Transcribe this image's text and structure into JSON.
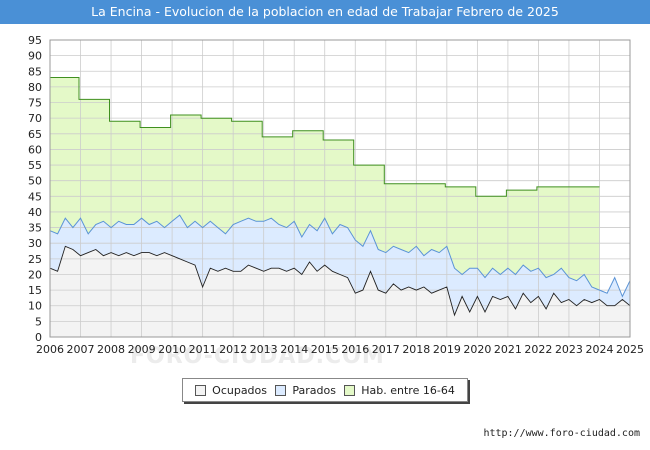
{
  "header": {
    "title": "La Encina - Evolucion de la poblacion en edad de Trabajar Febrero de 2025"
  },
  "watermark": "FORO-CIUDAD.COM",
  "source_text": "http://www.foro-ciudad.com",
  "colors": {
    "title_bg": "#4a90d6",
    "hab_fill": "#e4f9c8",
    "hab_line": "#3f8f1f",
    "par_fill": "#dcebff",
    "par_line": "#5a93d6",
    "ocu_fill": "#f3f3f3",
    "ocu_line": "#222222",
    "grid": "#cccccc"
  },
  "legend": [
    {
      "label": "Ocupados",
      "color": "#f3f3f3"
    },
    {
      "label": "Parados",
      "color": "#dcebff"
    },
    {
      "label": "Hab. entre 16-64",
      "color": "#e4f9c8"
    }
  ],
  "chart_data": {
    "type": "area",
    "title": "La Encina - Evolucion de la poblacion en edad de Trabajar Febrero de 2025",
    "xlabel": "",
    "ylabel": "",
    "xlim": [
      2006,
      2025
    ],
    "ylim": [
      0,
      95
    ],
    "y_ticks": [
      0,
      5,
      10,
      15,
      20,
      25,
      30,
      35,
      40,
      45,
      50,
      55,
      60,
      65,
      70,
      75,
      80,
      85,
      90,
      95
    ],
    "x_ticks": [
      "2006",
      "2007",
      "2008",
      "2009",
      "2010",
      "2011",
      "2012",
      "2013",
      "2014",
      "2015",
      "2016",
      "2017",
      "2018",
      "2019",
      "2020",
      "2021",
      "2022",
      "2023",
      "2024",
      "2025"
    ],
    "grid": true,
    "series": [
      {
        "name": "Hab. entre 16-64",
        "kind": "step",
        "points": [
          [
            2006.0,
            83
          ],
          [
            2006.95,
            76
          ],
          [
            2007.95,
            69
          ],
          [
            2008.95,
            67
          ],
          [
            2009.95,
            71
          ],
          [
            2010.95,
            70
          ],
          [
            2011.95,
            69
          ],
          [
            2012.95,
            64
          ],
          [
            2013.95,
            66
          ],
          [
            2014.95,
            63
          ],
          [
            2015.95,
            55
          ],
          [
            2016.95,
            49
          ],
          [
            2017.95,
            49
          ],
          [
            2018.95,
            48
          ],
          [
            2019.95,
            45
          ],
          [
            2020.95,
            47
          ],
          [
            2021.95,
            48
          ],
          [
            2022.95,
            48
          ],
          [
            2024.0,
            48
          ]
        ]
      },
      {
        "name": "Parados",
        "kind": "line",
        "points": [
          [
            2006.0,
            34
          ],
          [
            2006.25,
            33
          ],
          [
            2006.5,
            38
          ],
          [
            2006.75,
            35
          ],
          [
            2007.0,
            38
          ],
          [
            2007.25,
            33
          ],
          [
            2007.5,
            36
          ],
          [
            2007.75,
            37
          ],
          [
            2008.0,
            35
          ],
          [
            2008.25,
            37
          ],
          [
            2008.5,
            36
          ],
          [
            2008.75,
            36
          ],
          [
            2009.0,
            38
          ],
          [
            2009.25,
            36
          ],
          [
            2009.5,
            37
          ],
          [
            2009.75,
            35
          ],
          [
            2010.0,
            37
          ],
          [
            2010.25,
            39
          ],
          [
            2010.5,
            35
          ],
          [
            2010.75,
            37
          ],
          [
            2011.0,
            35
          ],
          [
            2011.25,
            37
          ],
          [
            2011.5,
            35
          ],
          [
            2011.75,
            33
          ],
          [
            2012.0,
            36
          ],
          [
            2012.25,
            37
          ],
          [
            2012.5,
            38
          ],
          [
            2012.75,
            37
          ],
          [
            2013.0,
            37
          ],
          [
            2013.25,
            38
          ],
          [
            2013.5,
            36
          ],
          [
            2013.75,
            35
          ],
          [
            2014.0,
            37
          ],
          [
            2014.25,
            32
          ],
          [
            2014.5,
            36
          ],
          [
            2014.75,
            34
          ],
          [
            2015.0,
            38
          ],
          [
            2015.25,
            33
          ],
          [
            2015.5,
            36
          ],
          [
            2015.75,
            35
          ],
          [
            2016.0,
            31
          ],
          [
            2016.25,
            29
          ],
          [
            2016.5,
            34
          ],
          [
            2016.75,
            28
          ],
          [
            2017.0,
            27
          ],
          [
            2017.25,
            29
          ],
          [
            2017.5,
            28
          ],
          [
            2017.75,
            27
          ],
          [
            2018.0,
            29
          ],
          [
            2018.25,
            26
          ],
          [
            2018.5,
            28
          ],
          [
            2018.75,
            27
          ],
          [
            2019.0,
            29
          ],
          [
            2019.25,
            22
          ],
          [
            2019.5,
            20
          ],
          [
            2019.75,
            22
          ],
          [
            2020.0,
            22
          ],
          [
            2020.25,
            19
          ],
          [
            2020.5,
            22
          ],
          [
            2020.75,
            20
          ],
          [
            2021.0,
            22
          ],
          [
            2021.25,
            20
          ],
          [
            2021.5,
            23
          ],
          [
            2021.75,
            21
          ],
          [
            2022.0,
            22
          ],
          [
            2022.25,
            19
          ],
          [
            2022.5,
            20
          ],
          [
            2022.75,
            22
          ],
          [
            2023.0,
            19
          ],
          [
            2023.25,
            18
          ],
          [
            2023.5,
            20
          ],
          [
            2023.75,
            16
          ],
          [
            2024.0,
            15
          ],
          [
            2024.25,
            14
          ],
          [
            2024.5,
            19
          ],
          [
            2024.75,
            13
          ],
          [
            2025.0,
            18
          ]
        ]
      },
      {
        "name": "Ocupados",
        "kind": "line",
        "points": [
          [
            2006.0,
            22
          ],
          [
            2006.25,
            21
          ],
          [
            2006.5,
            29
          ],
          [
            2006.75,
            28
          ],
          [
            2007.0,
            26
          ],
          [
            2007.25,
            27
          ],
          [
            2007.5,
            28
          ],
          [
            2007.75,
            26
          ],
          [
            2008.0,
            27
          ],
          [
            2008.25,
            26
          ],
          [
            2008.5,
            27
          ],
          [
            2008.75,
            26
          ],
          [
            2009.0,
            27
          ],
          [
            2009.25,
            27
          ],
          [
            2009.5,
            26
          ],
          [
            2009.75,
            27
          ],
          [
            2010.0,
            26
          ],
          [
            2010.25,
            25
          ],
          [
            2010.5,
            24
          ],
          [
            2010.75,
            23
          ],
          [
            2011.0,
            16
          ],
          [
            2011.25,
            22
          ],
          [
            2011.5,
            21
          ],
          [
            2011.75,
            22
          ],
          [
            2012.0,
            21
          ],
          [
            2012.25,
            21
          ],
          [
            2012.5,
            23
          ],
          [
            2012.75,
            22
          ],
          [
            2013.0,
            21
          ],
          [
            2013.25,
            22
          ],
          [
            2013.5,
            22
          ],
          [
            2013.75,
            21
          ],
          [
            2014.0,
            22
          ],
          [
            2014.25,
            20
          ],
          [
            2014.5,
            24
          ],
          [
            2014.75,
            21
          ],
          [
            2015.0,
            23
          ],
          [
            2015.25,
            21
          ],
          [
            2015.5,
            20
          ],
          [
            2015.75,
            19
          ],
          [
            2016.0,
            14
          ],
          [
            2016.25,
            15
          ],
          [
            2016.5,
            21
          ],
          [
            2016.75,
            15
          ],
          [
            2017.0,
            14
          ],
          [
            2017.25,
            17
          ],
          [
            2017.5,
            15
          ],
          [
            2017.75,
            16
          ],
          [
            2018.0,
            15
          ],
          [
            2018.25,
            16
          ],
          [
            2018.5,
            14
          ],
          [
            2018.75,
            15
          ],
          [
            2019.0,
            16
          ],
          [
            2019.25,
            7
          ],
          [
            2019.5,
            13
          ],
          [
            2019.75,
            8
          ],
          [
            2020.0,
            13
          ],
          [
            2020.25,
            8
          ],
          [
            2020.5,
            13
          ],
          [
            2020.75,
            12
          ],
          [
            2021.0,
            13
          ],
          [
            2021.25,
            9
          ],
          [
            2021.5,
            14
          ],
          [
            2021.75,
            11
          ],
          [
            2022.0,
            13
          ],
          [
            2022.25,
            9
          ],
          [
            2022.5,
            14
          ],
          [
            2022.75,
            11
          ],
          [
            2023.0,
            12
          ],
          [
            2023.25,
            10
          ],
          [
            2023.5,
            12
          ],
          [
            2023.75,
            11
          ],
          [
            2024.0,
            12
          ],
          [
            2024.25,
            10
          ],
          [
            2024.5,
            10
          ],
          [
            2024.75,
            12
          ],
          [
            2025.0,
            10
          ]
        ]
      }
    ]
  }
}
